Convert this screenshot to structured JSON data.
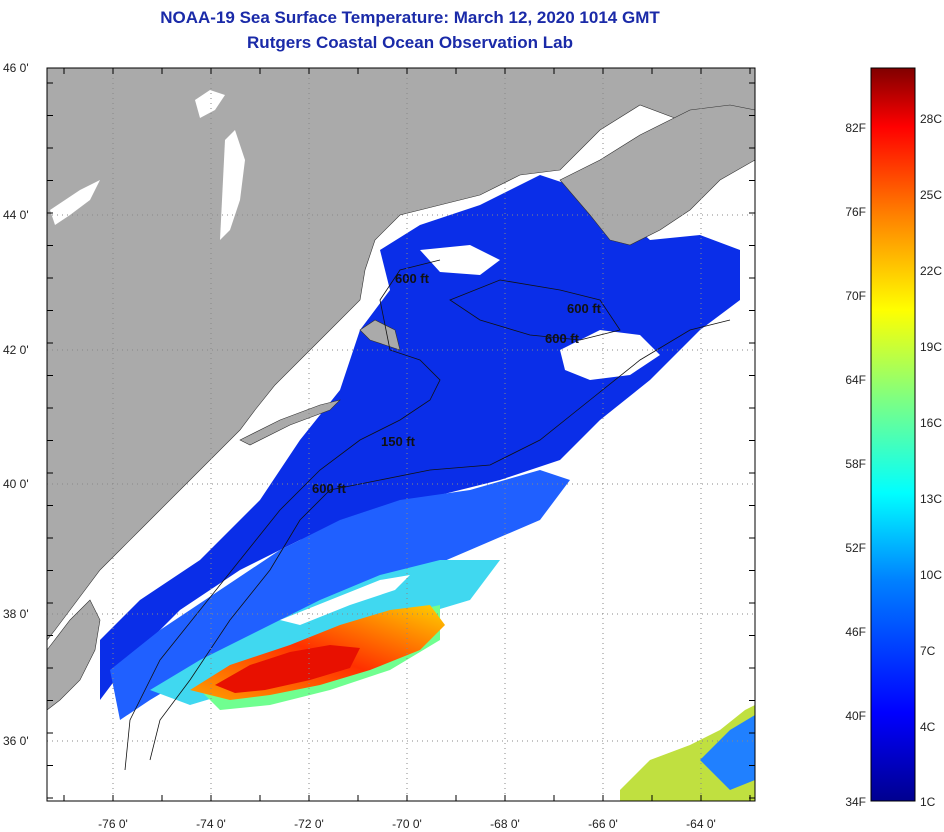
{
  "header": {
    "title": "NOAA-19 Sea Surface Temperature:  March 12, 2020 1014 GMT",
    "subtitle": "Rutgers Coastal Ocean Observation Lab"
  },
  "map": {
    "lat_ticks": [
      "46 0'",
      "44 0'",
      "42 0'",
      "40 0'",
      "38 0'",
      "36 0'"
    ],
    "lon_ticks": [
      "-76 0'",
      "-74 0'",
      "-72 0'",
      "-70 0'",
      "-68 0'",
      "-66 0'",
      "-64 0'"
    ],
    "contour_labels": [
      "600 ft",
      "600 ft",
      "600 ft",
      "150 ft",
      "600 ft"
    ],
    "colors": {
      "land": "#aaaaaa",
      "cloud": "#ffffff",
      "border": "#000000"
    }
  },
  "colorbar": {
    "fahrenheit": [
      "82F",
      "76F",
      "70F",
      "64F",
      "58F",
      "52F",
      "46F",
      "40F",
      "34F"
    ],
    "celsius": [
      "28C",
      "25C",
      "22C",
      "19C",
      "16C",
      "13C",
      "10C",
      "7C",
      "4C",
      "1C"
    ],
    "gradient": [
      "#00008f",
      "#0000ff",
      "#0080ff",
      "#00ffff",
      "#80ff80",
      "#ffff00",
      "#ff8000",
      "#ff0000",
      "#800000"
    ]
  }
}
